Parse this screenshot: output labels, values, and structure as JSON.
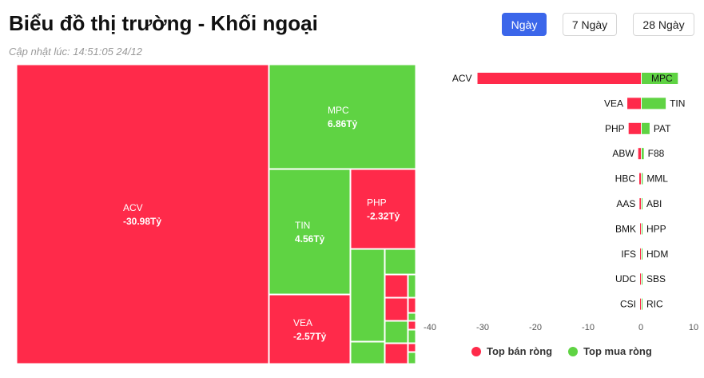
{
  "header": {
    "title": "Biểu đồ thị trường - Khối ngoại",
    "updated": "Cập nhật lúc: 14:51:05 24/12"
  },
  "tabs": [
    {
      "label": "Ngày",
      "active": true
    },
    {
      "label": "7 Ngày",
      "active": false
    },
    {
      "label": "28 Ngày",
      "active": false
    }
  ],
  "colors": {
    "sell": "#ff2a4a",
    "buy": "#5fd343"
  },
  "chart_data": [
    {
      "type": "treemap",
      "unit": "Tỷ",
      "tiles": [
        {
          "name": "ACV",
          "value": -30.98,
          "label": "-30.98Tỷ"
        },
        {
          "name": "MPC",
          "value": 6.86,
          "label": "6.86Tỷ"
        },
        {
          "name": "TIN",
          "value": 4.56,
          "label": "4.56Tỷ"
        },
        {
          "name": "VEA",
          "value": -2.57,
          "label": "-2.57Tỷ"
        },
        {
          "name": "PHP",
          "value": -2.32,
          "label": "-2.32Tỷ"
        }
      ]
    },
    {
      "type": "bar",
      "orientation": "horizontal-diverging",
      "xlim": [
        -40,
        10
      ],
      "xticks": [
        -40,
        -30,
        -20,
        -10,
        0,
        10
      ],
      "rows": [
        {
          "sell": "ACV",
          "sell_value": -30.98,
          "buy": "MPC",
          "buy_value": 6.86
        },
        {
          "sell": "VEA",
          "sell_value": -2.57,
          "buy": "TIN",
          "buy_value": 4.56
        },
        {
          "sell": "PHP",
          "sell_value": -2.32,
          "buy": "PAT",
          "buy_value": 1.5
        },
        {
          "sell": "ABW",
          "sell_value": -0.5,
          "buy": "F88",
          "buy_value": 0.4
        },
        {
          "sell": "HBC",
          "sell_value": -0.3,
          "buy": "MML",
          "buy_value": 0.2
        },
        {
          "sell": "AAS",
          "sell_value": -0.25,
          "buy": "ABI",
          "buy_value": 0.15
        },
        {
          "sell": "BMK",
          "sell_value": -0.15,
          "buy": "HPP",
          "buy_value": 0.1
        },
        {
          "sell": "IFS",
          "sell_value": -0.1,
          "buy": "HDM",
          "buy_value": 0.08
        },
        {
          "sell": "UDC",
          "sell_value": -0.08,
          "buy": "SBS",
          "buy_value": 0.06
        },
        {
          "sell": "CSI",
          "sell_value": -0.05,
          "buy": "RIC",
          "buy_value": 0.05
        }
      ],
      "legend": [
        {
          "label": "Top bán ròng",
          "color": "#ff2a4a"
        },
        {
          "label": "Top mua ròng",
          "color": "#5fd343"
        }
      ],
      "legend_position": "bottom"
    }
  ]
}
